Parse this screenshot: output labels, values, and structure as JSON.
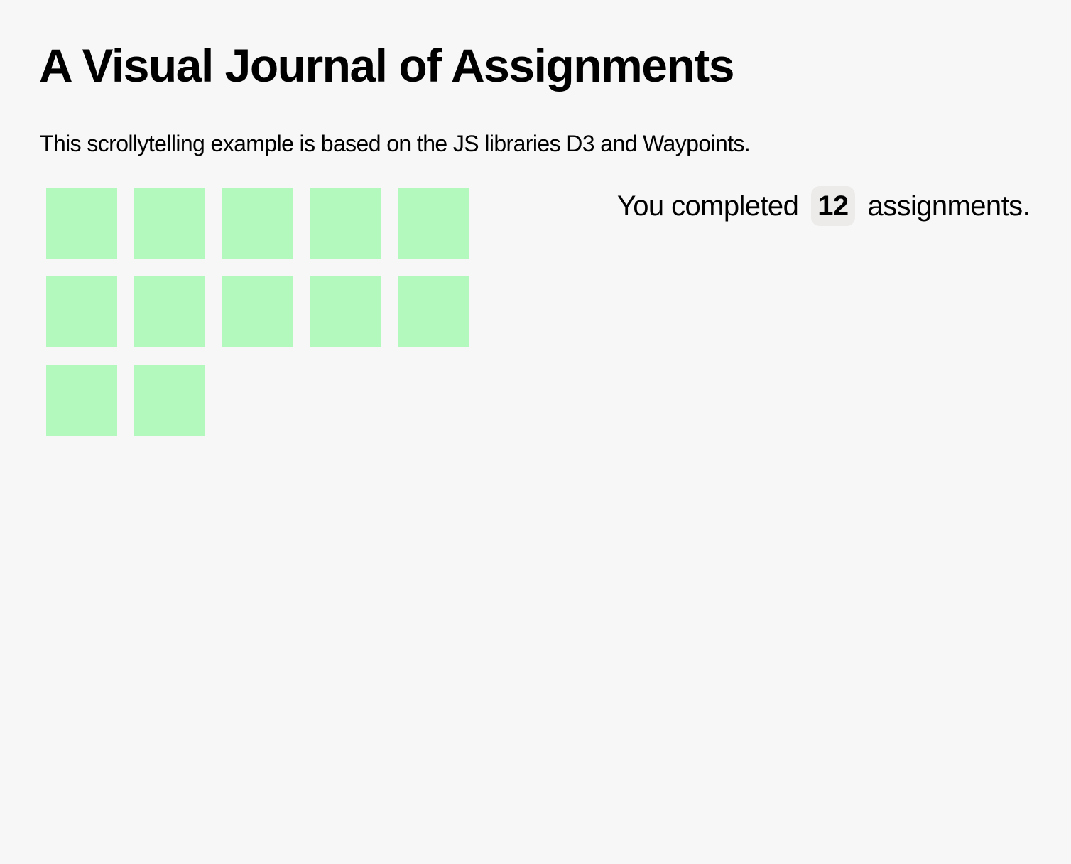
{
  "page": {
    "title": "A Visual Journal of Assignments",
    "intro": "This scrollytelling example is based on the JS libraries D3 and Waypoints."
  },
  "status": {
    "prefix": "You completed",
    "count": "12",
    "suffix": "assignments."
  },
  "assignments": {
    "completed": 12,
    "square_color": "#b3f8bc",
    "items_per_row": 5
  }
}
